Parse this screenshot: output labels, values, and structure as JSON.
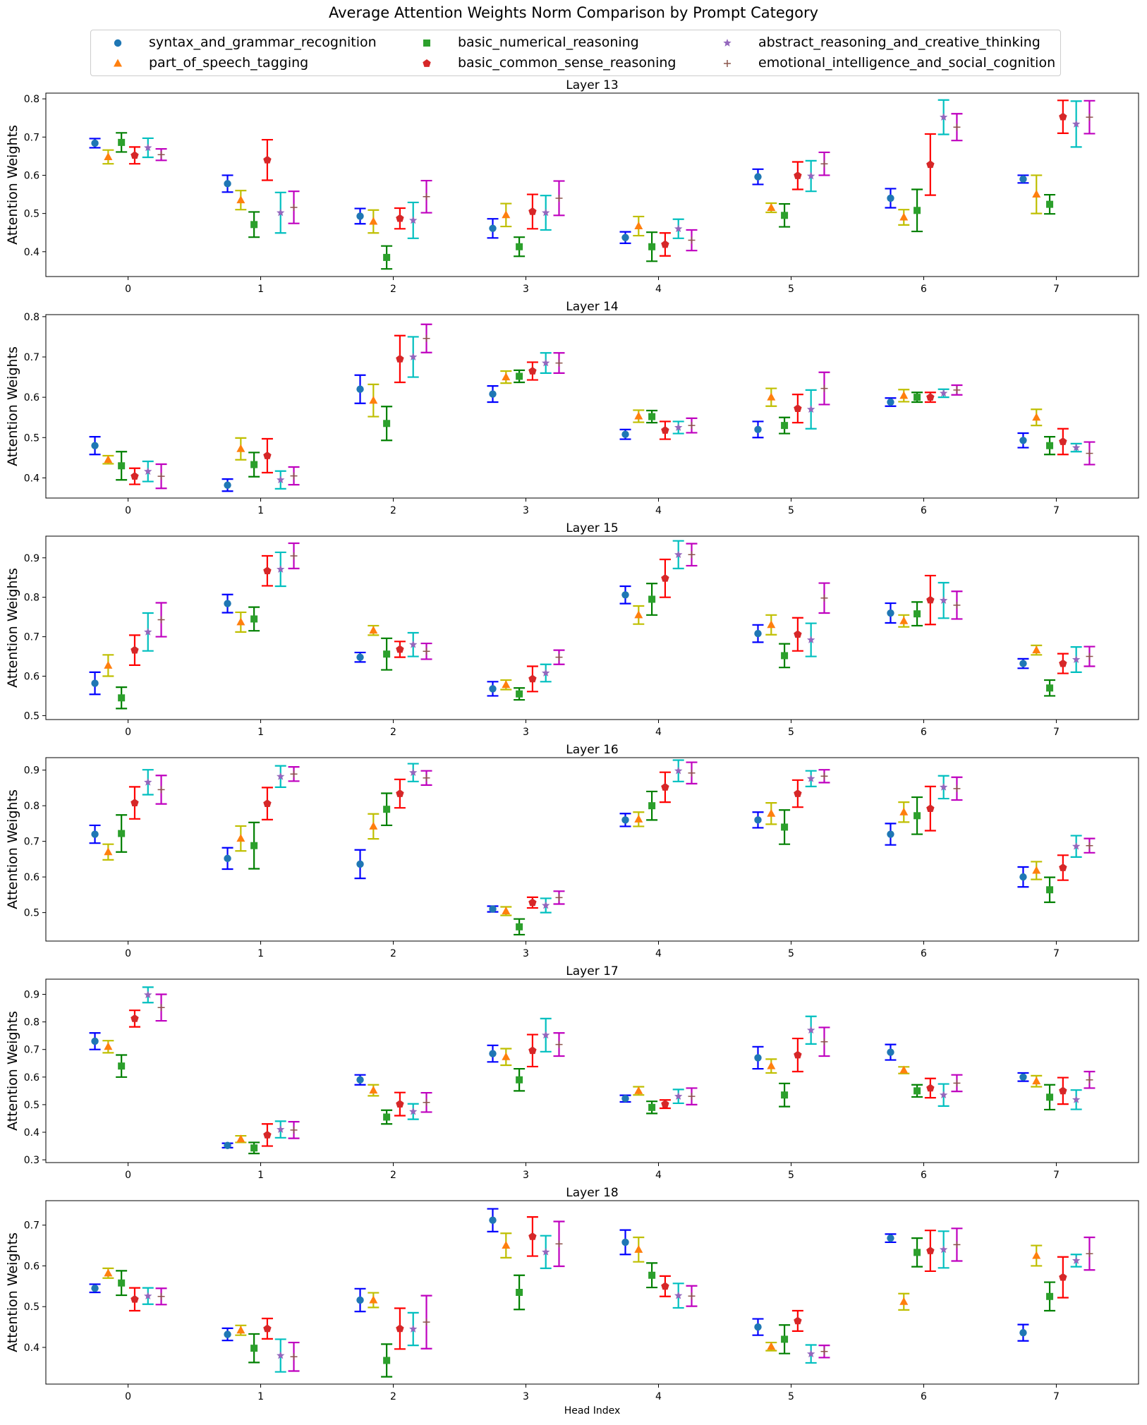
{
  "title": "Average Attention Weights Norm Comparison by Prompt Category",
  "chart_data": {
    "type": "scatter",
    "title": "Average Attention Weights Norm Comparison by Prompt Category",
    "xlabel": "Head Index",
    "ylabel": "Attention Weights",
    "heads": [
      0,
      1,
      2,
      3,
      4,
      5,
      6,
      7
    ],
    "legend_position": "top-center",
    "grid": false,
    "series": [
      {
        "name": "syntax_and_grammar_recognition",
        "marker": "circle",
        "color": "#1f77b4",
        "err_color": "#0000ff"
      },
      {
        "name": "part_of_speech_tagging",
        "marker": "triangle",
        "color": "#ff7f0e",
        "err_color": "#bfbf00"
      },
      {
        "name": "basic_numerical_reasoning",
        "marker": "square",
        "color": "#2ca02c",
        "err_color": "#008000"
      },
      {
        "name": "basic_common_sense_reasoning",
        "marker": "pentagon",
        "color": "#d62728",
        "err_color": "#ff0000"
      },
      {
        "name": "abstract_reasoning_and_creative_thinking",
        "marker": "star",
        "color": "#9467bd",
        "err_color": "#00bfbf"
      },
      {
        "name": "emotional_intelligence_and_social_cognition",
        "marker": "plus",
        "color": "#8c564b",
        "err_color": "#bf00bf"
      }
    ],
    "panels": [
      {
        "title": "Layer 13",
        "ylim": [
          0.335,
          0.815
        ],
        "yticks": [
          "0.4",
          "0.5",
          "0.6",
          "0.7",
          "0.8"
        ],
        "values": [
          [
            0.684,
            0.578,
            0.493,
            0.461,
            0.437,
            0.596,
            0.54,
            0.59
          ],
          [
            0.648,
            0.535,
            0.479,
            0.496,
            0.467,
            0.515,
            0.49,
            0.55
          ],
          [
            0.686,
            0.471,
            0.385,
            0.413,
            0.413,
            0.495,
            0.508,
            0.524
          ],
          [
            0.652,
            0.64,
            0.487,
            0.505,
            0.419,
            0.599,
            0.628,
            0.753
          ],
          [
            0.672,
            0.502,
            0.482,
            0.502,
            0.46,
            0.598,
            0.752,
            0.734
          ],
          [
            0.654,
            0.516,
            0.544,
            0.54,
            0.43,
            0.63,
            0.726,
            0.752
          ]
        ],
        "errors": [
          [
            0.012,
            0.022,
            0.02,
            0.025,
            0.015,
            0.02,
            0.025,
            0.01
          ],
          [
            0.018,
            0.025,
            0.03,
            0.03,
            0.025,
            0.012,
            0.02,
            0.05
          ],
          [
            0.025,
            0.033,
            0.03,
            0.025,
            0.038,
            0.03,
            0.055,
            0.025
          ],
          [
            0.022,
            0.053,
            0.027,
            0.045,
            0.03,
            0.036,
            0.08,
            0.043
          ],
          [
            0.025,
            0.053,
            0.047,
            0.045,
            0.025,
            0.04,
            0.045,
            0.06
          ],
          [
            0.015,
            0.042,
            0.042,
            0.045,
            0.027,
            0.03,
            0.035,
            0.043
          ]
        ]
      },
      {
        "title": "Layer 14",
        "ylim": [
          0.35,
          0.805
        ],
        "yticks": [
          "0.4",
          "0.5",
          "0.6",
          "0.7",
          "0.8"
        ],
        "values": [
          [
            0.48,
            0.382,
            0.62,
            0.608,
            0.508,
            0.52,
            0.588,
            0.493
          ],
          [
            0.445,
            0.472,
            0.592,
            0.65,
            0.553,
            0.6,
            0.604,
            0.55
          ],
          [
            0.43,
            0.433,
            0.535,
            0.652,
            0.552,
            0.53,
            0.6,
            0.48
          ],
          [
            0.404,
            0.455,
            0.695,
            0.665,
            0.518,
            0.572,
            0.6,
            0.49
          ],
          [
            0.416,
            0.395,
            0.7,
            0.685,
            0.525,
            0.57,
            0.61,
            0.475
          ],
          [
            0.404,
            0.405,
            0.746,
            0.685,
            0.53,
            0.622,
            0.618,
            0.461
          ]
        ],
        "errors": [
          [
            0.022,
            0.015,
            0.035,
            0.02,
            0.012,
            0.02,
            0.01,
            0.018
          ],
          [
            0.01,
            0.027,
            0.04,
            0.015,
            0.015,
            0.022,
            0.015,
            0.02
          ],
          [
            0.035,
            0.03,
            0.042,
            0.015,
            0.015,
            0.02,
            0.012,
            0.022
          ],
          [
            0.02,
            0.042,
            0.058,
            0.022,
            0.022,
            0.035,
            0.012,
            0.032
          ],
          [
            0.025,
            0.022,
            0.05,
            0.025,
            0.015,
            0.048,
            0.01,
            0.01
          ],
          [
            0.03,
            0.022,
            0.035,
            0.025,
            0.018,
            0.04,
            0.012,
            0.028
          ]
        ]
      },
      {
        "title": "Layer 15",
        "ylim": [
          0.49,
          0.955
        ],
        "yticks": [
          "0.5",
          "0.6",
          "0.7",
          "0.8",
          "0.9"
        ],
        "values": [
          [
            0.582,
            0.784,
            0.648,
            0.568,
            0.806,
            0.708,
            0.76,
            0.632
          ],
          [
            0.627,
            0.737,
            0.716,
            0.578,
            0.755,
            0.73,
            0.74,
            0.666
          ],
          [
            0.545,
            0.745,
            0.656,
            0.555,
            0.795,
            0.652,
            0.758,
            0.57
          ],
          [
            0.666,
            0.867,
            0.668,
            0.593,
            0.848,
            0.706,
            0.793,
            0.632
          ],
          [
            0.712,
            0.871,
            0.68,
            0.608,
            0.908,
            0.692,
            0.792,
            0.642
          ],
          [
            0.743,
            0.905,
            0.663,
            0.648,
            0.908,
            0.798,
            0.78,
            0.65
          ]
        ],
        "errors": [
          [
            0.028,
            0.023,
            0.012,
            0.018,
            0.022,
            0.022,
            0.025,
            0.012
          ],
          [
            0.027,
            0.025,
            0.012,
            0.012,
            0.023,
            0.025,
            0.015,
            0.012
          ],
          [
            0.027,
            0.03,
            0.04,
            0.015,
            0.04,
            0.03,
            0.03,
            0.02
          ],
          [
            0.038,
            0.038,
            0.02,
            0.032,
            0.048,
            0.042,
            0.062,
            0.025
          ],
          [
            0.048,
            0.043,
            0.03,
            0.022,
            0.035,
            0.042,
            0.045,
            0.032
          ],
          [
            0.043,
            0.032,
            0.02,
            0.018,
            0.028,
            0.038,
            0.035,
            0.025
          ]
        ]
      },
      {
        "title": "Layer 16",
        "ylim": [
          0.42,
          0.935
        ],
        "yticks": [
          "0.5",
          "0.6",
          "0.7",
          "0.8",
          "0.9"
        ],
        "values": [
          [
            0.72,
            0.652,
            0.636,
            0.51,
            0.76,
            0.76,
            0.72,
            0.6
          ],
          [
            0.67,
            0.708,
            0.742,
            0.504,
            0.762,
            0.778,
            0.782,
            0.618
          ],
          [
            0.722,
            0.688,
            0.79,
            0.46,
            0.8,
            0.74,
            0.772,
            0.564
          ],
          [
            0.808,
            0.806,
            0.834,
            0.528,
            0.852,
            0.834,
            0.792,
            0.626
          ],
          [
            0.866,
            0.882,
            0.893,
            0.52,
            0.898,
            0.876,
            0.852,
            0.686
          ],
          [
            0.845,
            0.889,
            0.878,
            0.542,
            0.892,
            0.883,
            0.848,
            0.688
          ]
        ],
        "errors": [
          [
            0.025,
            0.03,
            0.04,
            0.008,
            0.018,
            0.022,
            0.03,
            0.028
          ],
          [
            0.022,
            0.035,
            0.035,
            0.012,
            0.02,
            0.03,
            0.028,
            0.025
          ],
          [
            0.052,
            0.065,
            0.045,
            0.022,
            0.04,
            0.048,
            0.052,
            0.035
          ],
          [
            0.045,
            0.045,
            0.04,
            0.015,
            0.042,
            0.038,
            0.062,
            0.035
          ],
          [
            0.035,
            0.03,
            0.025,
            0.02,
            0.03,
            0.022,
            0.032,
            0.03
          ],
          [
            0.04,
            0.02,
            0.02,
            0.018,
            0.03,
            0.018,
            0.032,
            0.02
          ]
        ]
      },
      {
        "title": "Layer 17",
        "ylim": [
          0.29,
          0.955
        ],
        "yticks": [
          "0.3",
          "0.4",
          "0.5",
          "0.6",
          "0.7",
          "0.8",
          "0.9"
        ],
        "values": [
          [
            0.73,
            0.352,
            0.59,
            0.685,
            0.522,
            0.67,
            0.69,
            0.6
          ],
          [
            0.71,
            0.375,
            0.552,
            0.673,
            0.55,
            0.64,
            0.625,
            0.585
          ],
          [
            0.64,
            0.343,
            0.455,
            0.59,
            0.49,
            0.535,
            0.55,
            0.527
          ],
          [
            0.812,
            0.39,
            0.502,
            0.696,
            0.502,
            0.68,
            0.56,
            0.55
          ],
          [
            0.898,
            0.41,
            0.475,
            0.752,
            0.53,
            0.77,
            0.535,
            0.518
          ],
          [
            0.852,
            0.408,
            0.508,
            0.718,
            0.53,
            0.728,
            0.578,
            0.59
          ]
        ],
        "errors": [
          [
            0.03,
            0.008,
            0.018,
            0.03,
            0.012,
            0.04,
            0.028,
            0.015
          ],
          [
            0.022,
            0.012,
            0.02,
            0.03,
            0.015,
            0.025,
            0.012,
            0.02
          ],
          [
            0.04,
            0.02,
            0.025,
            0.04,
            0.022,
            0.042,
            0.022,
            0.045
          ],
          [
            0.03,
            0.04,
            0.042,
            0.058,
            0.015,
            0.06,
            0.035,
            0.048
          ],
          [
            0.028,
            0.03,
            0.028,
            0.06,
            0.025,
            0.05,
            0.04,
            0.035
          ],
          [
            0.048,
            0.03,
            0.035,
            0.042,
            0.03,
            0.052,
            0.03,
            0.03
          ]
        ]
      },
      {
        "title": "Layer 18",
        "ylim": [
          0.31,
          0.76
        ],
        "yticks": [
          "0.4",
          "0.5",
          "0.6",
          "0.7"
        ],
        "values": [
          [
            0.545,
            0.432,
            0.516,
            0.712,
            0.658,
            0.45,
            0.668,
            0.436
          ],
          [
            0.582,
            0.442,
            0.516,
            0.65,
            0.64,
            0.402,
            0.512,
            0.625
          ],
          [
            0.558,
            0.398,
            0.368,
            0.535,
            0.577,
            0.42,
            0.633,
            0.525
          ],
          [
            0.518,
            0.446,
            0.446,
            0.672,
            0.55,
            0.465,
            0.637,
            0.572
          ],
          [
            0.526,
            0.38,
            0.445,
            0.634,
            0.527,
            0.384,
            0.64,
            0.613
          ],
          [
            0.525,
            0.377,
            0.462,
            0.654,
            0.526,
            0.39,
            0.652,
            0.63
          ]
        ],
        "errors": [
          [
            0.01,
            0.015,
            0.028,
            0.028,
            0.03,
            0.02,
            0.01,
            0.02
          ],
          [
            0.012,
            0.012,
            0.018,
            0.03,
            0.03,
            0.01,
            0.02,
            0.025
          ],
          [
            0.03,
            0.035,
            0.04,
            0.042,
            0.03,
            0.035,
            0.035,
            0.035
          ],
          [
            0.028,
            0.025,
            0.05,
            0.048,
            0.025,
            0.025,
            0.05,
            0.05
          ],
          [
            0.02,
            0.04,
            0.04,
            0.04,
            0.03,
            0.022,
            0.045,
            0.015
          ],
          [
            0.02,
            0.035,
            0.065,
            0.055,
            0.025,
            0.015,
            0.04,
            0.04
          ]
        ]
      }
    ]
  }
}
